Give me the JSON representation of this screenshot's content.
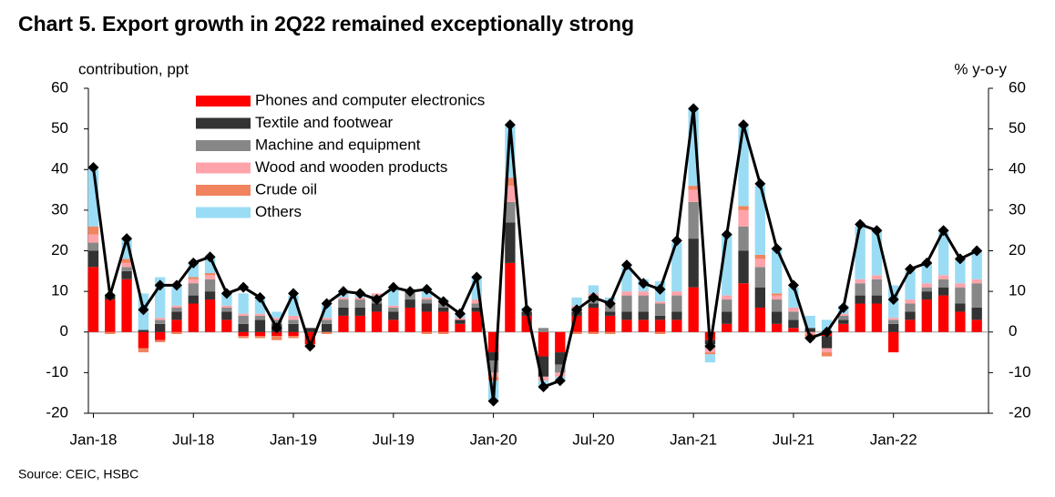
{
  "chart_data": {
    "type": "bar",
    "stacked": true,
    "title": "Chart 5. Export growth in 2Q22 remained exceptionally strong",
    "ylabel": "contribution,  ppt",
    "y2label": "% y-o-y",
    "source": "Source:  CEIC, HSBC",
    "categories": [
      "Jan-18",
      null,
      null,
      null,
      null,
      null,
      "Jul-18",
      null,
      null,
      null,
      null,
      null,
      "Jan-19",
      null,
      null,
      null,
      null,
      null,
      "Jul-19",
      null,
      null,
      null,
      null,
      null,
      "Jan-20",
      null,
      null,
      null,
      null,
      null,
      "Jul-20",
      null,
      null,
      null,
      null,
      null,
      "Jan-21",
      null,
      null,
      null,
      null,
      null,
      "Jul-21",
      null,
      null,
      null,
      null,
      null,
      "Jan-22",
      null,
      null,
      null,
      null,
      null
    ],
    "series": [
      {
        "name": "Phones and computer electronics",
        "color": "#ff0000",
        "values": [
          16,
          8,
          13,
          -4,
          -2,
          3,
          7,
          8,
          3,
          -1,
          -1,
          -1,
          -1,
          -3,
          0,
          4,
          4,
          5,
          3,
          6,
          5,
          5,
          2,
          5,
          -5,
          17,
          4,
          -6,
          -5,
          4,
          6,
          4,
          3,
          3,
          3,
          3,
          11,
          -2,
          2,
          12,
          6,
          2,
          1,
          0,
          -1,
          2,
          7,
          7,
          -5,
          3,
          8,
          9,
          5,
          3
        ]
      },
      {
        "name": "Textile and footwear",
        "color": "#333333",
        "values": [
          4,
          1,
          2,
          0.5,
          2,
          2,
          2,
          2,
          2,
          2,
          3,
          2,
          2,
          1,
          2,
          2,
          2,
          2,
          2,
          2,
          2,
          1,
          1,
          1,
          -2,
          10,
          1,
          -5,
          -3,
          1,
          1,
          1,
          2,
          2,
          1,
          2,
          12,
          -1,
          3,
          8,
          5,
          3,
          2,
          1,
          -3,
          1,
          2,
          2,
          2,
          2,
          2,
          2,
          2,
          3
        ]
      },
      {
        "name": "Machine and equipment",
        "color": "#878787",
        "values": [
          2,
          0,
          1,
          0,
          1,
          1,
          3,
          3,
          1,
          2,
          1,
          1,
          1,
          0,
          1,
          2,
          2,
          2,
          1,
          2,
          1,
          1,
          0,
          1,
          -3,
          5,
          0,
          1,
          -2,
          1,
          2,
          2,
          4,
          4,
          3,
          4,
          9,
          -1,
          3,
          6,
          5,
          3,
          2,
          0,
          0,
          1,
          3,
          4,
          1,
          2,
          1,
          2,
          4,
          6
        ]
      },
      {
        "name": "Wood and wooden products",
        "color": "#ffa3ab",
        "values": [
          2,
          0,
          1,
          0,
          0.5,
          0.5,
          1,
          1,
          0.5,
          0.5,
          0.5,
          0.5,
          1,
          0,
          0.5,
          0.5,
          0.5,
          0.5,
          0.5,
          0.5,
          0.5,
          0.5,
          0.5,
          1,
          -1,
          4,
          0,
          -1,
          -1,
          0.5,
          0.5,
          0.5,
          1,
          1,
          0.5,
          1,
          3,
          -1,
          1,
          4,
          2,
          1,
          1,
          -0.5,
          -1,
          0.5,
          1,
          1,
          0.5,
          1,
          1,
          1,
          1,
          1
        ]
      },
      {
        "name": "Crude oil",
        "color": "#f0845f",
        "values": [
          2,
          -0.5,
          1,
          -1,
          -0.5,
          -0.5,
          0.5,
          0.5,
          0,
          -0.5,
          -0.5,
          -1,
          -0.5,
          -0.5,
          -0.5,
          0,
          0,
          0,
          0,
          0,
          -0.5,
          -0.5,
          0,
          0,
          -1,
          2,
          0,
          0,
          0,
          -0.5,
          -0.5,
          -0.5,
          0,
          0,
          -0.5,
          0,
          1,
          -0.5,
          0,
          1,
          1,
          0.5,
          0,
          -1,
          -1,
          0,
          0,
          0,
          0,
          0,
          0,
          0,
          0,
          0
        ]
      },
      {
        "name": "Others",
        "color": "#9adcf4",
        "values": [
          14,
          0.5,
          5,
          9,
          10,
          5,
          3.5,
          4,
          3,
          5,
          4,
          1.5,
          5,
          0,
          3,
          1.5,
          1,
          0,
          4,
          0,
          2,
          0.5,
          1,
          5.5,
          -5,
          13,
          1,
          -2,
          -1,
          2,
          2,
          1,
          6,
          3,
          5,
          12,
          19,
          -2,
          15,
          20,
          17,
          11,
          5,
          3,
          3,
          2,
          13,
          11,
          8,
          7,
          5,
          11,
          6,
          7
        ]
      },
      {
        "type": "line",
        "axis": "y2",
        "color": "#000000",
        "values": [
          40.5,
          9,
          23,
          5.5,
          11.5,
          11.5,
          17,
          18.5,
          9.5,
          11,
          8.5,
          1,
          9.5,
          -3.5,
          7,
          10,
          9.5,
          8,
          11,
          10,
          10.5,
          7.5,
          4.5,
          13.5,
          -17,
          51,
          5.5,
          -13.5,
          -12,
          5.5,
          8.5,
          7,
          16.5,
          12,
          10.5,
          22.5,
          55,
          -3.5,
          24,
          51,
          36.5,
          20.5,
          11.5,
          -1.5,
          0,
          6,
          26.5,
          25,
          8,
          15.5,
          17,
          25,
          18,
          20
        ]
      }
    ],
    "ylim": [
      -20,
      60
    ],
    "yticks": [
      -20,
      -10,
      0,
      10,
      20,
      30,
      40,
      50,
      60
    ],
    "y2lim": [
      -20,
      60
    ],
    "y2ticks": [
      -20,
      -10,
      0,
      10,
      20,
      30,
      40,
      50,
      60
    ],
    "legend": "upper left"
  }
}
